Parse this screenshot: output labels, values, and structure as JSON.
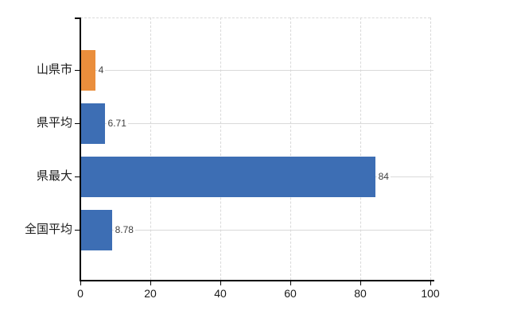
{
  "chart_data": {
    "type": "bar",
    "orientation": "horizontal",
    "title": "",
    "categories": [
      "山県市",
      "県平均",
      "県最大",
      "全国平均"
    ],
    "values": [
      4,
      6.71,
      84,
      8.78
    ],
    "value_labels": [
      "4",
      "6.71",
      "84",
      "8.78"
    ],
    "series": [
      {
        "name": "value",
        "values": [
          4,
          6.71,
          84,
          8.78
        ]
      }
    ],
    "bar_colors": [
      "#ea8e3c",
      "#3d6eb4",
      "#3d6eb4",
      "#3d6eb4"
    ],
    "x_ticks": [
      "0",
      "20",
      "40",
      "60",
      "80",
      "100"
    ],
    "x_tick_values": [
      0,
      20,
      40,
      60,
      80,
      100
    ],
    "xlim": [
      0,
      100
    ],
    "grid": true,
    "legend_position": "none",
    "colors": {
      "bar_default": "#3d6eb4",
      "bar_highlight": "#ea8e3c",
      "grid": "#d9d9d9",
      "axis": "#000000",
      "value_label": "#404040",
      "tick_label": "#1a1a1a",
      "background": "#ffffff"
    }
  }
}
